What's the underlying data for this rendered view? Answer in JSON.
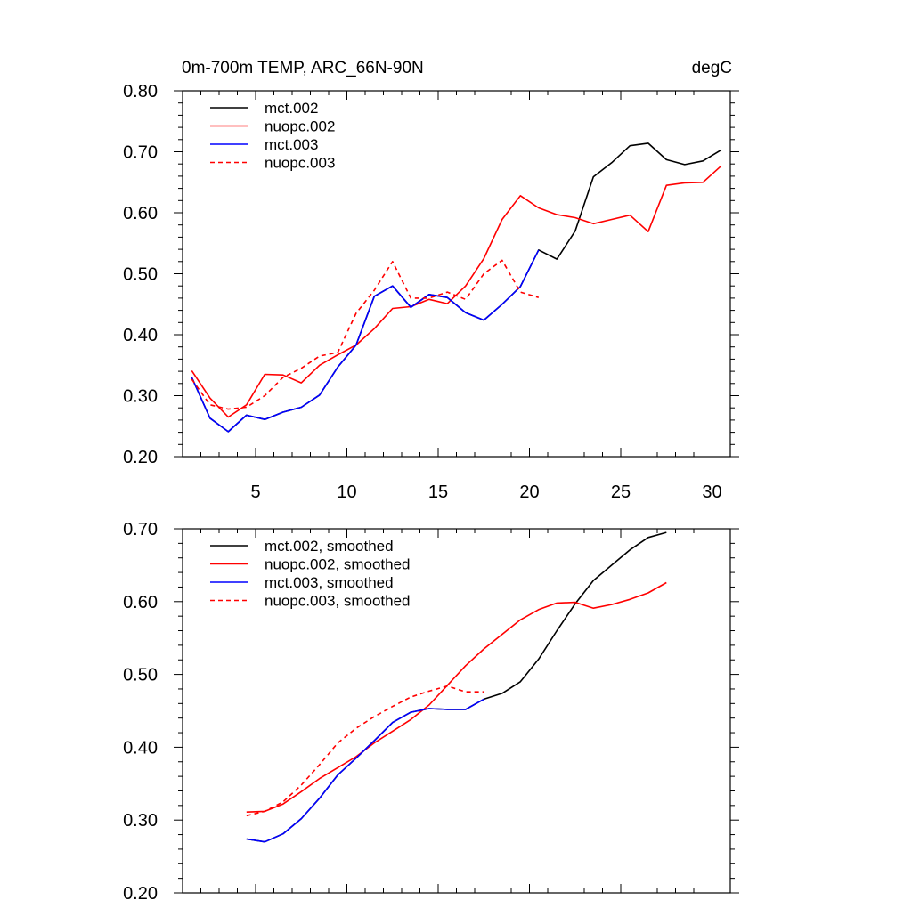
{
  "chart_data": [
    {
      "type": "line",
      "title": "0m-700m TEMP, ARC_66N-90N",
      "units": "degC",
      "xlim": [
        1,
        31
      ],
      "ylim": [
        0.2,
        0.8
      ],
      "xticks": [
        5,
        10,
        15,
        20,
        25,
        30
      ],
      "yticks": [
        0.2,
        0.3,
        0.4,
        0.5,
        0.6,
        0.7,
        0.8
      ],
      "ytick_labels": [
        "0.20",
        "0.30",
        "0.40",
        "0.50",
        "0.60",
        "0.70",
        "0.80"
      ],
      "grid": false,
      "legend_position": "top-left",
      "series": [
        {
          "name": "mct.002",
          "color": "#000000",
          "dash": "solid",
          "x": [
            1.5,
            2.5,
            3.5,
            4.5,
            5.5,
            6.5,
            7.5,
            8.5,
            9.5,
            10.5,
            11.5,
            12.5,
            13.5,
            14.5,
            15.5,
            16.5,
            17.5,
            18.5,
            19.5,
            20.5,
            21.5,
            22.5,
            23.5,
            24.5,
            25.5,
            26.5,
            27.5,
            28.5,
            29.5,
            30.5
          ],
          "y": [
            0.33,
            0.263,
            0.241,
            0.268,
            0.261,
            0.273,
            0.281,
            0.301,
            0.347,
            0.383,
            0.463,
            0.48,
            0.445,
            0.466,
            0.461,
            0.436,
            0.424,
            0.45,
            0.479,
            0.539,
            0.524,
            0.57,
            0.659,
            0.682,
            0.71,
            0.714,
            0.687,
            0.679,
            0.685,
            0.703
          ]
        },
        {
          "name": "nuopc.002",
          "color": "#ff0000",
          "dash": "solid",
          "x": [
            1.5,
            2.5,
            3.5,
            4.5,
            5.5,
            6.5,
            7.5,
            8.5,
            9.5,
            10.5,
            11.5,
            12.5,
            13.5,
            14.5,
            15.5,
            16.5,
            17.5,
            18.5,
            19.5,
            20.5,
            21.5,
            22.5,
            23.5,
            24.5,
            25.5,
            26.5,
            27.5,
            28.5,
            29.5,
            30.5
          ],
          "y": [
            0.341,
            0.296,
            0.265,
            0.285,
            0.335,
            0.334,
            0.321,
            0.35,
            0.367,
            0.383,
            0.41,
            0.443,
            0.446,
            0.458,
            0.451,
            0.48,
            0.525,
            0.589,
            0.628,
            0.608,
            0.597,
            0.592,
            0.582,
            0.589,
            0.596,
            0.569,
            0.645,
            0.649,
            0.65,
            0.677
          ]
        },
        {
          "name": "mct.003",
          "color": "#0000ff",
          "dash": "solid",
          "x": [
            1.5,
            2.5,
            3.5,
            4.5,
            5.5,
            6.5,
            7.5,
            8.5,
            9.5,
            10.5,
            11.5,
            12.5,
            13.5,
            14.5,
            15.5,
            16.5,
            17.5,
            18.5,
            19.5,
            20.5
          ],
          "y": [
            0.33,
            0.263,
            0.241,
            0.268,
            0.261,
            0.273,
            0.281,
            0.301,
            0.347,
            0.383,
            0.463,
            0.48,
            0.445,
            0.466,
            0.461,
            0.436,
            0.424,
            0.45,
            0.479,
            0.539
          ]
        },
        {
          "name": "nuopc.003",
          "color": "#ff0000",
          "dash": "dashed",
          "x": [
            1.5,
            2.5,
            3.5,
            4.5,
            5.5,
            6.5,
            7.5,
            8.5,
            9.5,
            10.5,
            11.5,
            12.5,
            13.5,
            14.5,
            15.5,
            16.5,
            17.5,
            18.5,
            19.5,
            20.5
          ],
          "y": [
            0.327,
            0.285,
            0.278,
            0.281,
            0.3,
            0.33,
            0.345,
            0.365,
            0.371,
            0.435,
            0.473,
            0.52,
            0.46,
            0.46,
            0.47,
            0.458,
            0.5,
            0.522,
            0.47,
            0.461
          ]
        }
      ]
    },
    {
      "type": "line",
      "xlim": [
        1,
        31
      ],
      "ylim": [
        0.2,
        0.7
      ],
      "xticks": [
        5,
        10,
        15,
        20,
        25,
        30
      ],
      "yticks": [
        0.2,
        0.3,
        0.4,
        0.5,
        0.6,
        0.7
      ],
      "ytick_labels": [
        "0.20",
        "0.30",
        "0.40",
        "0.50",
        "0.60",
        "0.70"
      ],
      "grid": false,
      "legend_position": "top-left",
      "series": [
        {
          "name": "mct.002, smoothed",
          "color": "#000000",
          "dash": "solid",
          "x": [
            4.5,
            5.5,
            6.5,
            7.5,
            8.5,
            9.5,
            10.5,
            11.5,
            12.5,
            13.5,
            14.5,
            15.5,
            16.5,
            17.5,
            18.5,
            19.5,
            20.5,
            21.5,
            22.5,
            23.5,
            24.5,
            25.5,
            26.5,
            27.5
          ],
          "y": [
            0.274,
            0.27,
            0.281,
            0.302,
            0.33,
            0.362,
            0.385,
            0.409,
            0.434,
            0.448,
            0.453,
            0.452,
            0.452,
            0.466,
            0.474,
            0.49,
            0.521,
            0.56,
            0.597,
            0.629,
            0.65,
            0.671,
            0.688,
            0.695
          ]
        },
        {
          "name": "nuopc.002, smoothed",
          "color": "#ff0000",
          "dash": "solid",
          "x": [
            4.5,
            5.5,
            6.5,
            7.5,
            8.5,
            9.5,
            10.5,
            11.5,
            12.5,
            13.5,
            14.5,
            15.5,
            16.5,
            17.5,
            18.5,
            19.5,
            20.5,
            21.5,
            22.5,
            23.5,
            24.5,
            25.5,
            26.5,
            27.5
          ],
          "y": [
            0.311,
            0.312,
            0.322,
            0.339,
            0.357,
            0.372,
            0.387,
            0.406,
            0.422,
            0.438,
            0.458,
            0.485,
            0.512,
            0.535,
            0.555,
            0.575,
            0.589,
            0.598,
            0.599,
            0.591,
            0.596,
            0.603,
            0.612,
            0.626
          ]
        },
        {
          "name": "mct.003, smoothed",
          "color": "#0000ff",
          "dash": "solid",
          "x": [
            4.5,
            5.5,
            6.5,
            7.5,
            8.5,
            9.5,
            10.5,
            11.5,
            12.5,
            13.5,
            14.5,
            15.5,
            16.5,
            17.5
          ],
          "y": [
            0.274,
            0.27,
            0.281,
            0.302,
            0.33,
            0.362,
            0.385,
            0.409,
            0.434,
            0.448,
            0.453,
            0.452,
            0.452,
            0.466
          ]
        },
        {
          "name": "nuopc.003, smoothed",
          "color": "#ff0000",
          "dash": "dashed",
          "x": [
            4.5,
            5.5,
            6.5,
            7.5,
            8.5,
            9.5,
            10.5,
            11.5,
            12.5,
            13.5,
            14.5,
            15.5,
            16.5,
            17.5
          ],
          "y": [
            0.306,
            0.312,
            0.325,
            0.348,
            0.376,
            0.406,
            0.426,
            0.442,
            0.456,
            0.469,
            0.477,
            0.484,
            0.476,
            0.476
          ]
        }
      ]
    }
  ]
}
